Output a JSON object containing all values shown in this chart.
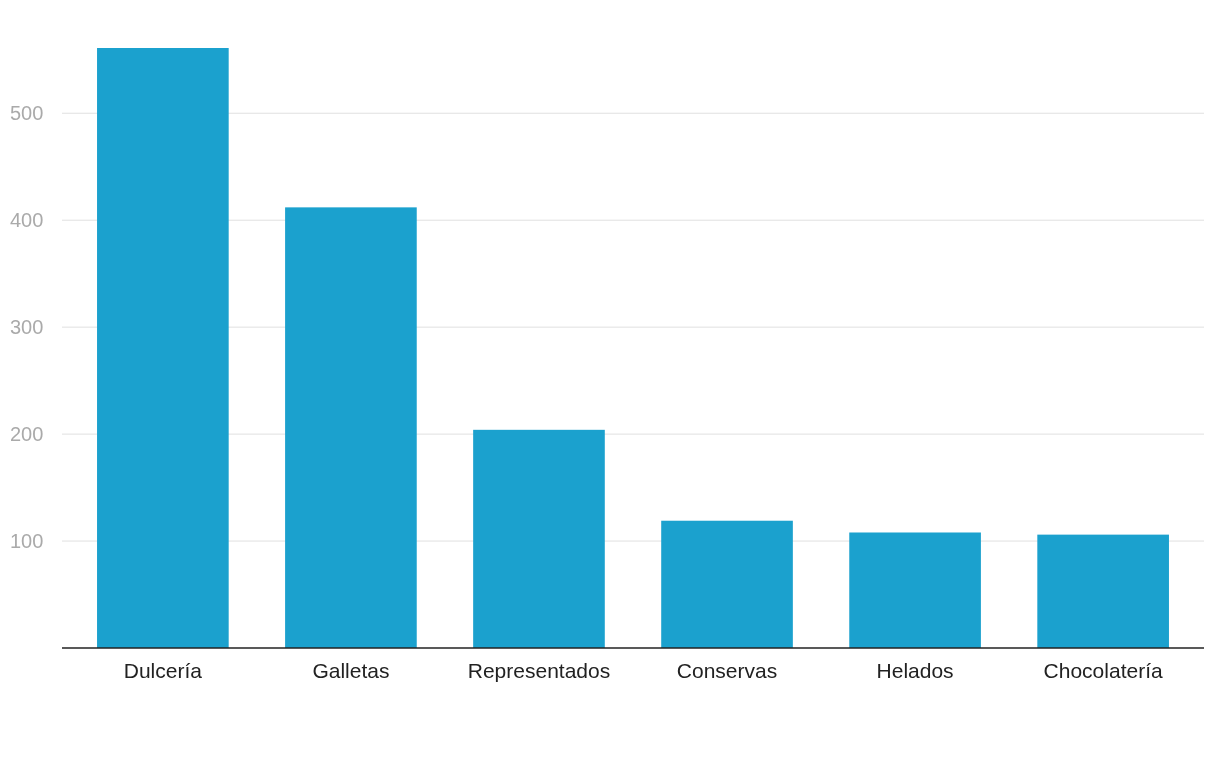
{
  "chart_data": {
    "type": "bar",
    "categories": [
      "Dulcería",
      "Galletas",
      "Representados",
      "Conservas",
      "Helados",
      "Chocolatería"
    ],
    "values": [
      561,
      412,
      204,
      119,
      108,
      106
    ],
    "color": "#1ba1ce",
    "ylim": [
      0,
      561
    ],
    "yticks": [
      100,
      200,
      300,
      400,
      500
    ],
    "grid": "y"
  }
}
